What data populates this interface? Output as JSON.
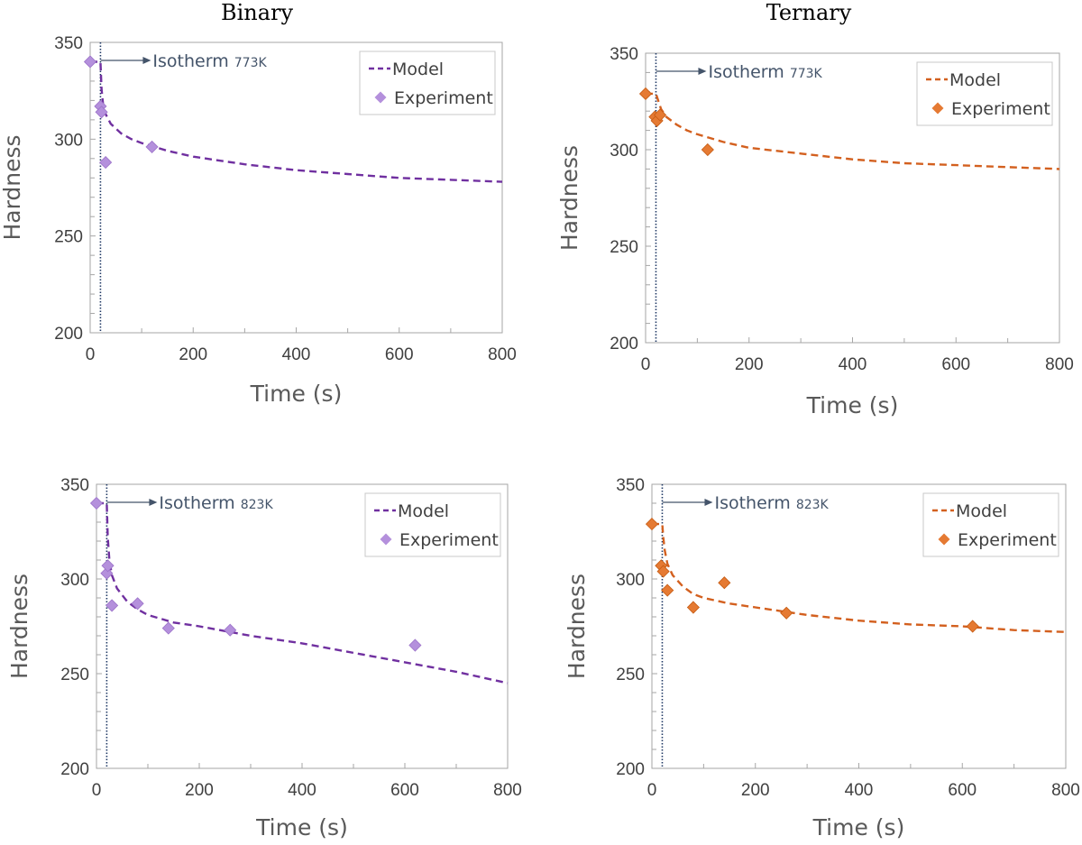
{
  "columns": {
    "left": "Binary",
    "right": "Ternary"
  },
  "chart_data": [
    {
      "id": "binary-773",
      "type": "line",
      "column": "Binary",
      "xlabel": "Time (s)",
      "ylabel": "Hardness",
      "xlim": [
        0,
        800
      ],
      "ylim": [
        200,
        350
      ],
      "xticks": [
        0,
        200,
        400,
        600,
        800
      ],
      "yticks": [
        200,
        250,
        300,
        350
      ],
      "isotherm_time": 20,
      "annotation": {
        "text": "Isotherm ",
        "temp": "773K"
      },
      "legend": {
        "model": "Model",
        "experiment": "Experiment"
      },
      "color": "#7030a0",
      "marker_color": "#b490dc",
      "model": {
        "x": [
          0,
          20,
          22,
          25,
          30,
          40,
          60,
          80,
          100,
          150,
          200,
          300,
          400,
          500,
          600,
          700,
          800
        ],
        "y": [
          340,
          340,
          326,
          318,
          313,
          308,
          303,
          300,
          298,
          294,
          291,
          287,
          284,
          282,
          280,
          279,
          278
        ]
      },
      "experiment": {
        "x": [
          0,
          20,
          22,
          30,
          120
        ],
        "y": [
          340,
          317,
          314,
          288,
          296
        ]
      }
    },
    {
      "id": "ternary-773",
      "type": "line",
      "column": "Ternary",
      "xlabel": "Time (s)",
      "ylabel": "Hardness",
      "xlim": [
        0,
        800
      ],
      "ylim": [
        200,
        350
      ],
      "xticks": [
        0,
        200,
        400,
        600,
        800
      ],
      "yticks": [
        200,
        250,
        300,
        350
      ],
      "isotherm_time": 20,
      "annotation": {
        "text": "Isotherm ",
        "temp": "773K"
      },
      "legend": {
        "model": "Model",
        "experiment": "Experiment"
      },
      "color": "#d3601f",
      "marker_color": "#e57a33",
      "model": {
        "x": [
          0,
          20,
          25,
          30,
          40,
          60,
          80,
          100,
          150,
          200,
          300,
          400,
          500,
          600,
          700,
          800
        ],
        "y": [
          329,
          329,
          325,
          321,
          317,
          313,
          310,
          308,
          304,
          301,
          298,
          295,
          293,
          292,
          291,
          290
        ]
      },
      "experiment": {
        "x": [
          0,
          18,
          22,
          28,
          120
        ],
        "y": [
          329,
          317,
          315,
          318,
          300
        ]
      }
    },
    {
      "id": "binary-823",
      "type": "line",
      "column": "Binary",
      "xlabel": "Time (s)",
      "ylabel": "Hardness",
      "xlim": [
        0,
        800
      ],
      "ylim": [
        200,
        350
      ],
      "xticks": [
        0,
        200,
        400,
        600,
        800
      ],
      "yticks": [
        200,
        250,
        300,
        350
      ],
      "isotherm_time": 20,
      "annotation": {
        "text": "Isotherm ",
        "temp": "823K"
      },
      "legend": {
        "model": "Model",
        "experiment": "Experiment"
      },
      "color": "#7030a0",
      "marker_color": "#b490dc",
      "model": {
        "x": [
          0,
          20,
          22,
          25,
          30,
          40,
          60,
          80,
          100,
          150,
          200,
          300,
          400,
          500,
          600,
          700,
          800
        ],
        "y": [
          340,
          340,
          322,
          310,
          302,
          295,
          288,
          284,
          281,
          277,
          275,
          270,
          266,
          261,
          256,
          251,
          245
        ]
      },
      "experiment": {
        "x": [
          0,
          20,
          22,
          30,
          80,
          140,
          260,
          620
        ],
        "y": [
          340,
          303,
          307,
          286,
          287,
          274,
          273,
          265
        ]
      }
    },
    {
      "id": "ternary-823",
      "type": "line",
      "column": "Ternary",
      "xlabel": "Time (s)",
      "ylabel": "Hardness",
      "xlim": [
        0,
        800
      ],
      "ylim": [
        200,
        350
      ],
      "xticks": [
        0,
        200,
        400,
        600,
        800
      ],
      "yticks": [
        200,
        250,
        300,
        350
      ],
      "isotherm_time": 20,
      "annotation": {
        "text": "Isotherm ",
        "temp": "823K"
      },
      "legend": {
        "model": "Model",
        "experiment": "Experiment"
      },
      "color": "#d3601f",
      "marker_color": "#e57a33",
      "model": {
        "x": [
          0,
          20,
          22,
          25,
          30,
          40,
          60,
          80,
          100,
          150,
          200,
          300,
          400,
          500,
          600,
          700,
          800
        ],
        "y": [
          329,
          329,
          322,
          315,
          308,
          302,
          296,
          292,
          290,
          287,
          285,
          281,
          278,
          276,
          275,
          273,
          272
        ]
      },
      "experiment": {
        "x": [
          0,
          18,
          22,
          30,
          80,
          140,
          260,
          620
        ],
        "y": [
          329,
          307,
          304,
          294,
          285,
          298,
          282,
          275
        ]
      }
    }
  ]
}
